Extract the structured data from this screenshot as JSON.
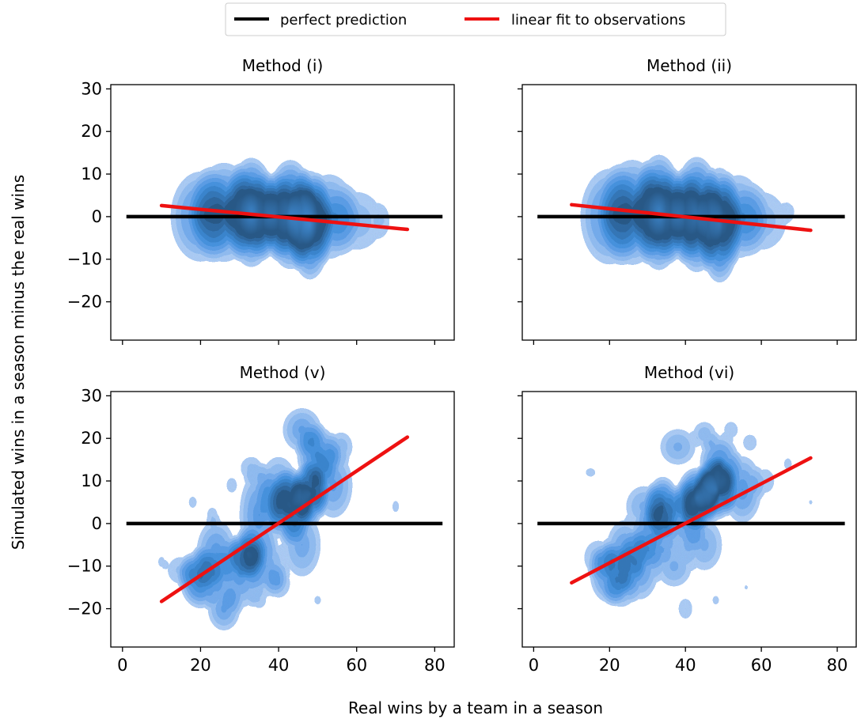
{
  "figure": {
    "xlabel": "Real wins by a team in a season",
    "ylabel": "Simulated wins in a season minus the real wins"
  },
  "legend": {
    "placement": "top-center",
    "entries": [
      {
        "label": "perfect prediction",
        "color": "#000000"
      },
      {
        "label": "linear fit to observations",
        "color": "#ee1111"
      }
    ]
  },
  "colors": {
    "density_levels": [
      "#a9c9f2",
      "#8fbaee",
      "#74aaea",
      "#5b9ce4",
      "#4691dc",
      "#3a84cc",
      "#3476b6",
      "#2e679f",
      "#285886"
    ],
    "perfect_prediction": "#000000",
    "linear_fit": "#ee1111"
  },
  "chart_data": [
    {
      "type": "area",
      "subtype": "kde-density-contour",
      "title": "Method (i)",
      "xlim": [
        -3,
        85
      ],
      "ylim": [
        -29,
        31
      ],
      "x_ticks": [
        0,
        20,
        40,
        60,
        80
      ],
      "y_ticks": [
        -20,
        -10,
        0,
        10,
        20,
        30
      ],
      "show_x_tick_labels": false,
      "show_y_tick_labels": true,
      "perfect_prediction": {
        "x": [
          1,
          82
        ],
        "y": [
          0,
          0
        ]
      },
      "linear_fit": {
        "x": [
          10,
          73
        ],
        "y": [
          2.6,
          -3.0
        ]
      },
      "density_blobs": [
        {
          "cx": 20,
          "cy": 0,
          "rx": 4.5,
          "ry": 8,
          "w": 0.55
        },
        {
          "cx": 26,
          "cy": 1,
          "rx": 4.5,
          "ry": 8.5,
          "w": 0.7
        },
        {
          "cx": 33,
          "cy": 1,
          "rx": 3.5,
          "ry": 9,
          "w": 1.0
        },
        {
          "cx": 38,
          "cy": 0,
          "rx": 4,
          "ry": 7,
          "w": 0.6
        },
        {
          "cx": 43,
          "cy": 0.5,
          "rx": 3.5,
          "ry": 9,
          "w": 1.0
        },
        {
          "cx": 48,
          "cy": -2,
          "rx": 3,
          "ry": 9,
          "w": 0.95
        },
        {
          "cx": 53,
          "cy": 0,
          "rx": 4,
          "ry": 7.5,
          "w": 0.55
        },
        {
          "cx": 60,
          "cy": -1,
          "rx": 4.5,
          "ry": 6,
          "w": 0.3
        },
        {
          "cx": 67,
          "cy": -1,
          "rx": 1.5,
          "ry": 3.5,
          "w": 0.12
        }
      ]
    },
    {
      "type": "area",
      "subtype": "kde-density-contour",
      "title": "Method (ii)",
      "xlim": [
        -3,
        85
      ],
      "ylim": [
        -29,
        31
      ],
      "x_ticks": [
        0,
        20,
        40,
        60,
        80
      ],
      "y_ticks": [
        -20,
        -10,
        0,
        10,
        20,
        30
      ],
      "show_x_tick_labels": false,
      "show_y_tick_labels": false,
      "perfect_prediction": {
        "x": [
          1,
          82
        ],
        "y": [
          0,
          0
        ]
      },
      "linear_fit": {
        "x": [
          10,
          73
        ],
        "y": [
          2.8,
          -3.2
        ]
      },
      "density_blobs": [
        {
          "cx": 20,
          "cy": 0,
          "rx": 4.5,
          "ry": 8.5,
          "w": 0.55
        },
        {
          "cx": 26,
          "cy": 1,
          "rx": 4.5,
          "ry": 9,
          "w": 0.7
        },
        {
          "cx": 33,
          "cy": 1,
          "rx": 3.5,
          "ry": 9.5,
          "w": 1.0
        },
        {
          "cx": 38,
          "cy": 0,
          "rx": 4,
          "ry": 7.5,
          "w": 0.6
        },
        {
          "cx": 43,
          "cy": 0.5,
          "rx": 3.5,
          "ry": 9.5,
          "w": 1.0
        },
        {
          "cx": 49,
          "cy": -2,
          "rx": 3,
          "ry": 9.5,
          "w": 0.95
        },
        {
          "cx": 54,
          "cy": 0,
          "rx": 4,
          "ry": 7.5,
          "w": 0.5
        },
        {
          "cx": 60,
          "cy": -1,
          "rx": 4.5,
          "ry": 6,
          "w": 0.3
        },
        {
          "cx": 68,
          "cy": 1.5,
          "rx": 1.5,
          "ry": 2.5,
          "w": 0.12
        }
      ]
    },
    {
      "type": "area",
      "subtype": "kde-density-contour",
      "title": "Method (v)",
      "xlim": [
        -3,
        85
      ],
      "ylim": [
        -29,
        31
      ],
      "x_ticks": [
        0,
        20,
        40,
        60,
        80
      ],
      "y_ticks": [
        -20,
        -10,
        0,
        10,
        20,
        30
      ],
      "show_x_tick_labels": true,
      "show_y_tick_labels": true,
      "perfect_prediction": {
        "x": [
          1,
          82
        ],
        "y": [
          0,
          0
        ]
      },
      "linear_fit": {
        "x": [
          10,
          73
        ],
        "y": [
          -18.3,
          20.3
        ]
      },
      "density_blobs": [
        {
          "cx": 10,
          "cy": -9,
          "rx": 1,
          "ry": 1.8,
          "w": 0.15
        },
        {
          "cx": 15,
          "cy": -11,
          "rx": 2.5,
          "ry": 3,
          "w": 0.25
        },
        {
          "cx": 20,
          "cy": -13,
          "rx": 3,
          "ry": 5,
          "w": 0.75
        },
        {
          "cx": 24,
          "cy": -7,
          "rx": 3,
          "ry": 6,
          "w": 0.5
        },
        {
          "cx": 26,
          "cy": -20,
          "rx": 2.5,
          "ry": 4,
          "w": 0.45
        },
        {
          "cx": 30,
          "cy": -12,
          "rx": 3.5,
          "ry": 6,
          "w": 0.5
        },
        {
          "cx": 32,
          "cy": -7,
          "rx": 2.5,
          "ry": 4,
          "w": 0.7
        },
        {
          "cx": 35,
          "cy": 2,
          "rx": 3,
          "ry": 8,
          "w": 0.5
        },
        {
          "cx": 37,
          "cy": -10,
          "rx": 3,
          "ry": 5,
          "w": 0.4
        },
        {
          "cx": 40,
          "cy": 8,
          "rx": 3,
          "ry": 6,
          "w": 0.45
        },
        {
          "cx": 43,
          "cy": 4,
          "rx": 3,
          "ry": 6,
          "w": 0.85
        },
        {
          "cx": 48,
          "cy": 7,
          "rx": 2.5,
          "ry": 5,
          "w": 1.0
        },
        {
          "cx": 46,
          "cy": -5,
          "rx": 3,
          "ry": 6,
          "w": 0.4
        },
        {
          "cx": 50,
          "cy": 16,
          "rx": 3,
          "ry": 5,
          "w": 0.65
        },
        {
          "cx": 54,
          "cy": 9,
          "rx": 3,
          "ry": 6,
          "w": 0.45
        },
        {
          "cx": 46,
          "cy": 22,
          "rx": 3,
          "ry": 4,
          "w": 0.45
        },
        {
          "cx": 56,
          "cy": 18,
          "rx": 2,
          "ry": 3,
          "w": 0.3
        },
        {
          "cx": 40,
          "cy": -14,
          "rx": 2,
          "ry": 3,
          "w": 0.3
        },
        {
          "cx": 33,
          "cy": 13,
          "rx": 2,
          "ry": 2.5,
          "w": 0.25
        },
        {
          "cx": 35,
          "cy": -18,
          "rx": 1.5,
          "ry": 2,
          "w": 0.2
        },
        {
          "cx": 50,
          "cy": -18,
          "rx": 1,
          "ry": 1.5,
          "w": 0.15
        },
        {
          "cx": 70,
          "cy": 4,
          "rx": 1,
          "ry": 2,
          "w": 0.15
        },
        {
          "cx": 18,
          "cy": 5,
          "rx": 1.2,
          "ry": 2,
          "w": 0.15
        },
        {
          "cx": 28,
          "cy": 9,
          "rx": 1.2,
          "ry": 2,
          "w": 0.18
        },
        {
          "cx": 23,
          "cy": 2,
          "rx": 1.2,
          "ry": 2,
          "w": 0.18
        }
      ]
    },
    {
      "type": "area",
      "subtype": "kde-density-contour",
      "title": "Method (vi)",
      "xlim": [
        -3,
        85
      ],
      "ylim": [
        -29,
        31
      ],
      "x_ticks": [
        0,
        20,
        40,
        60,
        80
      ],
      "y_ticks": [
        -20,
        -10,
        0,
        10,
        20,
        30
      ],
      "show_x_tick_labels": true,
      "show_y_tick_labels": false,
      "perfect_prediction": {
        "x": [
          1,
          82
        ],
        "y": [
          0,
          0
        ]
      },
      "linear_fit": {
        "x": [
          10,
          73
        ],
        "y": [
          -13.9,
          15.4
        ]
      },
      "density_blobs": [
        {
          "cx": 15,
          "cy": 12,
          "rx": 1.5,
          "ry": 1.5,
          "w": 0.15
        },
        {
          "cx": 17,
          "cy": -8,
          "rx": 2.5,
          "ry": 3.5,
          "w": 0.3
        },
        {
          "cx": 20,
          "cy": -12,
          "rx": 3,
          "ry": 5,
          "w": 0.55
        },
        {
          "cx": 24,
          "cy": -7,
          "rx": 3,
          "ry": 6,
          "w": 0.5
        },
        {
          "cx": 23,
          "cy": -16,
          "rx": 2.5,
          "ry": 3,
          "w": 0.35
        },
        {
          "cx": 28,
          "cy": -10,
          "rx": 3,
          "ry": 6,
          "w": 0.5
        },
        {
          "cx": 29,
          "cy": 4,
          "rx": 3,
          "ry": 4,
          "w": 0.35
        },
        {
          "cx": 32,
          "cy": -3,
          "rx": 3,
          "ry": 5,
          "w": 0.55
        },
        {
          "cx": 34,
          "cy": 4,
          "rx": 2.5,
          "ry": 5,
          "w": 0.8
        },
        {
          "cx": 37,
          "cy": -10,
          "rx": 3,
          "ry": 4,
          "w": 0.35
        },
        {
          "cx": 40,
          "cy": 1,
          "rx": 3,
          "ry": 6,
          "w": 0.5
        },
        {
          "cx": 43,
          "cy": 6,
          "rx": 3,
          "ry": 5,
          "w": 0.95
        },
        {
          "cx": 48,
          "cy": 8,
          "rx": 3,
          "ry": 5,
          "w": 1.0
        },
        {
          "cx": 45,
          "cy": -5,
          "rx": 3,
          "ry": 5,
          "w": 0.35
        },
        {
          "cx": 49,
          "cy": 14,
          "rx": 3,
          "ry": 5,
          "w": 0.6
        },
        {
          "cx": 55,
          "cy": 8,
          "rx": 3,
          "ry": 6,
          "w": 0.5
        },
        {
          "cx": 38,
          "cy": 18,
          "rx": 3,
          "ry": 3.5,
          "w": 0.35
        },
        {
          "cx": 45,
          "cy": 21,
          "rx": 2,
          "ry": 2.5,
          "w": 0.3
        },
        {
          "cx": 52,
          "cy": 22,
          "rx": 1.5,
          "ry": 2,
          "w": 0.2
        },
        {
          "cx": 57,
          "cy": 19,
          "rx": 1.5,
          "ry": 2,
          "w": 0.2
        },
        {
          "cx": 40,
          "cy": -20,
          "rx": 1.5,
          "ry": 2.5,
          "w": 0.2
        },
        {
          "cx": 48,
          "cy": -18,
          "rx": 1,
          "ry": 1.5,
          "w": 0.15
        },
        {
          "cx": 61,
          "cy": 10,
          "rx": 2,
          "ry": 3,
          "w": 0.2
        },
        {
          "cx": 67,
          "cy": 14,
          "rx": 1.2,
          "ry": 2,
          "w": 0.15
        },
        {
          "cx": 73,
          "cy": 5,
          "rx": 1,
          "ry": 1.5,
          "w": 0.12
        },
        {
          "cx": 56,
          "cy": -15,
          "rx": 1,
          "ry": 1.5,
          "w": 0.12
        }
      ]
    }
  ]
}
